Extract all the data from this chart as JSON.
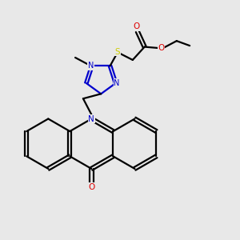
{
  "background_color": "#e8e8e8",
  "atom_colors": {
    "C": "#000000",
    "N": "#0000cc",
    "O": "#dd0000",
    "S": "#cccc00",
    "H": "#000000"
  },
  "figsize": [
    3.0,
    3.0
  ],
  "dpi": 100,
  "xlim": [
    0,
    10
  ],
  "ylim": [
    0,
    10
  ]
}
